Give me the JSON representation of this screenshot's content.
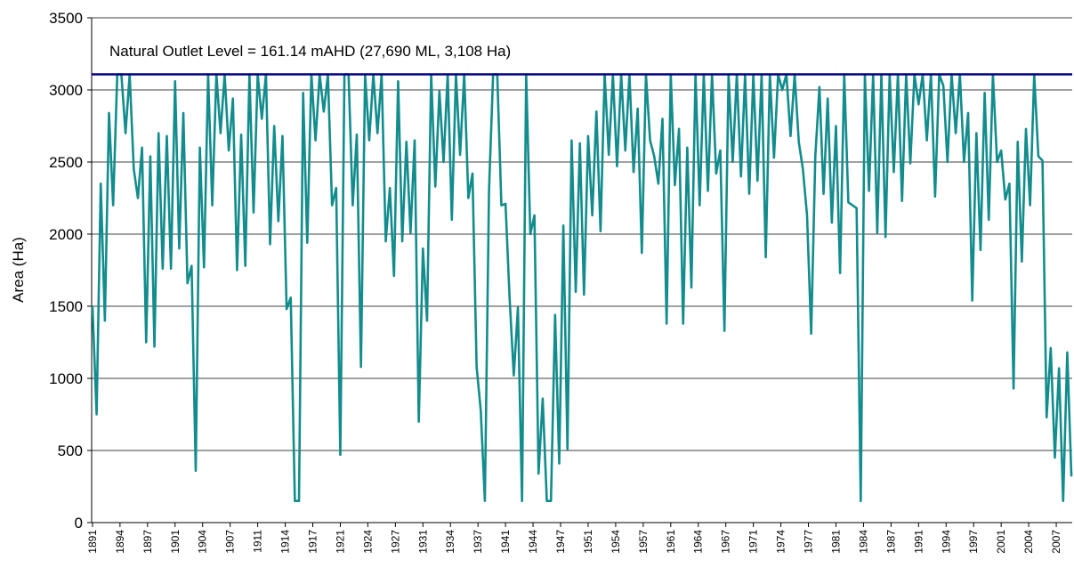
{
  "chart_data": {
    "type": "line",
    "y_label": "Area (Ha)",
    "color": "#128c8c",
    "grid": true,
    "reference_line": {
      "value": 3108,
      "label": "Natural Outlet Level = 161.14 mAHD (27,690 ML, 3,108 Ha)",
      "color": "#000080"
    },
    "ylim": [
      0,
      3500
    ],
    "yticks": [
      0,
      500,
      1000,
      1500,
      2000,
      2500,
      3000,
      3500
    ],
    "xlim": [
      1890.9,
      2009.6
    ],
    "xticks": [
      1891,
      {
        "value": 1894.333,
        "label": "1894"
      },
      {
        "value": 1897.667,
        "label": "1897"
      },
      1901,
      {
        "value": 1904.333,
        "label": "1904"
      },
      {
        "value": 1907.667,
        "label": "1907"
      },
      1911,
      {
        "value": 1914.333,
        "label": "1914"
      },
      {
        "value": 1917.667,
        "label": "1917"
      },
      1921,
      {
        "value": 1924.333,
        "label": "1924"
      },
      {
        "value": 1927.667,
        "label": "1927"
      },
      1931,
      {
        "value": 1934.333,
        "label": "1934"
      },
      {
        "value": 1937.667,
        "label": "1937"
      },
      1941,
      {
        "value": 1944.333,
        "label": "1944"
      },
      {
        "value": 1947.667,
        "label": "1947"
      },
      1951,
      {
        "value": 1954.333,
        "label": "1954"
      },
      {
        "value": 1957.667,
        "label": "1957"
      },
      1961,
      {
        "value": 1964.333,
        "label": "1964"
      },
      {
        "value": 1967.667,
        "label": "1967"
      },
      1971,
      {
        "value": 1974.333,
        "label": "1974"
      },
      {
        "value": 1977.667,
        "label": "1977"
      },
      1981,
      {
        "value": 1984.333,
        "label": "1984"
      },
      {
        "value": 1987.667,
        "label": "1987"
      },
      1991,
      {
        "value": 1994.333,
        "label": "1994"
      },
      {
        "value": 1997.667,
        "label": "1997"
      },
      2001,
      {
        "value": 2004.333,
        "label": "2004"
      },
      {
        "value": 2007.667,
        "label": "2007"
      }
    ],
    "x": [
      1891,
      1891.5,
      1892,
      1892.5,
      1893,
      1893.5,
      1894,
      1894.5,
      1895,
      1895.5,
      1896,
      1896.5,
      1897,
      1897.5,
      1898,
      1898.5,
      1899,
      1899.5,
      1900,
      1900.5,
      1901,
      1901.5,
      1902,
      1902.5,
      1903,
      1903.5,
      1904,
      1904.5,
      1905,
      1905.5,
      1906,
      1906.5,
      1907,
      1907.5,
      1908,
      1908.5,
      1909,
      1909.5,
      1910,
      1910.5,
      1911,
      1911.5,
      1912,
      1912.5,
      1913,
      1913.5,
      1914,
      1914.5,
      1915,
      1915.5,
      1916,
      1916.5,
      1917,
      1917.5,
      1918,
      1918.5,
      1919,
      1919.5,
      1920,
      1920.5,
      1921,
      1921.5,
      1922,
      1922.5,
      1923,
      1923.5,
      1924,
      1924.5,
      1925,
      1925.5,
      1926,
      1926.5,
      1927,
      1927.5,
      1928,
      1928.5,
      1929,
      1929.5,
      1930,
      1930.5,
      1931,
      1931.5,
      1932,
      1932.5,
      1933,
      1933.5,
      1934,
      1934.5,
      1935,
      1935.5,
      1936,
      1936.5,
      1937,
      1937.5,
      1938,
      1938.5,
      1939,
      1939.5,
      1940,
      1940.5,
      1941,
      1941.5,
      1942,
      1942.5,
      1943,
      1943.5,
      1944,
      1944.5,
      1945,
      1945.5,
      1946,
      1946.5,
      1947,
      1947.5,
      1948,
      1948.5,
      1949,
      1949.5,
      1950,
      1950.5,
      1951,
      1951.5,
      1952,
      1952.5,
      1953,
      1953.5,
      1954,
      1954.5,
      1955,
      1955.5,
      1956,
      1956.5,
      1957,
      1957.5,
      1958,
      1958.5,
      1959,
      1959.5,
      1960,
      1960.5,
      1961,
      1961.5,
      1962,
      1962.5,
      1963,
      1963.5,
      1964,
      1964.5,
      1965,
      1965.5,
      1966,
      1966.5,
      1967,
      1967.5,
      1968,
      1968.5,
      1969,
      1969.5,
      1970,
      1970.5,
      1971,
      1971.5,
      1972,
      1972.5,
      1973,
      1973.5,
      1974,
      1974.5,
      1975,
      1975.5,
      1976,
      1976.5,
      1977,
      1977.5,
      1978,
      1978.5,
      1979,
      1979.5,
      1980,
      1980.5,
      1981,
      1981.5,
      1982,
      1982.5,
      1983,
      1983.5,
      1984,
      1984.5,
      1985,
      1985.5,
      1986,
      1986.5,
      1987,
      1987.5,
      1988,
      1988.5,
      1989,
      1989.5,
      1990,
      1990.5,
      1991,
      1991.5,
      1992,
      1992.5,
      1993,
      1993.5,
      1994,
      1994.5,
      1995,
      1995.5,
      1996,
      1996.5,
      1997,
      1997.5,
      1998,
      1998.5,
      1999,
      1999.5,
      2000,
      2000.5,
      2001,
      2001.5,
      2002,
      2002.5,
      2003,
      2003.5,
      2004,
      2004.5,
      2005,
      2005.5,
      2006,
      2006.5,
      2007,
      2007.5,
      2008,
      2008.5,
      2009,
      2009.5
    ],
    "values": [
      1500,
      750,
      2350,
      1400,
      2840,
      2200,
      3108,
      3108,
      2700,
      3108,
      2450,
      2250,
      2600,
      1250,
      2540,
      1220,
      2700,
      1760,
      2680,
      1760,
      3060,
      1900,
      2840,
      1660,
      1780,
      360,
      2600,
      1770,
      3108,
      2200,
      3108,
      2700,
      3108,
      2580,
      2940,
      1750,
      2690,
      1780,
      3108,
      2150,
      3108,
      2800,
      3108,
      1930,
      2750,
      2090,
      2680,
      1480,
      1560,
      150,
      150,
      2980,
      1940,
      3108,
      2650,
      3108,
      2850,
      3108,
      2200,
      2320,
      470,
      3108,
      3108,
      2200,
      2690,
      1080,
      3108,
      2650,
      3108,
      2700,
      3108,
      1950,
      2320,
      1710,
      3060,
      1950,
      2640,
      2010,
      2650,
      700,
      1900,
      1400,
      3108,
      2330,
      2990,
      2500,
      3108,
      2100,
      3108,
      2550,
      3108,
      2250,
      2420,
      1080,
      780,
      150,
      2300,
      3108,
      3108,
      2200,
      2210,
      1550,
      1020,
      1490,
      150,
      3108,
      2000,
      2130,
      340,
      860,
      150,
      150,
      1440,
      410,
      2060,
      510,
      2650,
      1600,
      2630,
      1580,
      2680,
      2130,
      2850,
      2020,
      3108,
      2550,
      3108,
      2470,
      3108,
      2580,
      3108,
      2430,
      2870,
      1870,
      3108,
      2650,
      2540,
      2350,
      2800,
      1380,
      3108,
      2340,
      2730,
      1380,
      2600,
      1630,
      3108,
      2200,
      3108,
      2300,
      3108,
      2420,
      2580,
      1330,
      3108,
      2500,
      3108,
      2400,
      3108,
      2280,
      3108,
      2370,
      3108,
      1840,
      3108,
      2530,
      3108,
      3000,
      3108,
      2680,
      3108,
      2640,
      2450,
      2130,
      1310,
      2540,
      3020,
      2280,
      2940,
      2080,
      2750,
      1730,
      3108,
      2220,
      2200,
      2180,
      150,
      3108,
      2300,
      3108,
      2010,
      3108,
      1980,
      3108,
      2430,
      3108,
      2230,
      3108,
      2490,
      3108,
      2900,
      3108,
      2650,
      3108,
      2260,
      3108,
      3030,
      2500,
      3108,
      2700,
      3108,
      2500,
      2840,
      1540,
      2700,
      1890,
      2980,
      2100,
      3108,
      2500,
      2580,
      2240,
      2350,
      930,
      2640,
      1810,
      2730,
      2200,
      3108,
      2540,
      2510,
      730,
      1210,
      450,
      1070,
      150,
      1180,
      320
    ]
  }
}
